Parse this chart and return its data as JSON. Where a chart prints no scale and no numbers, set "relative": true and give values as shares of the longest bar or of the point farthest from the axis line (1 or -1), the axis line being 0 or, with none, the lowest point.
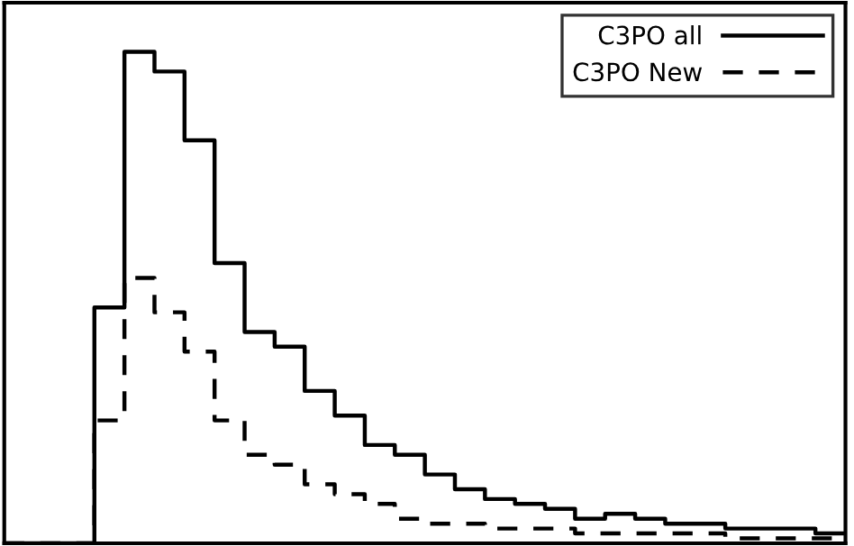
{
  "chart_data": {
    "type": "step",
    "relative": true,
    "legend": "top right",
    "categories": [
      null,
      null,
      null,
      null,
      null,
      null,
      null,
      null,
      null,
      null,
      null,
      null,
      null,
      null,
      null,
      null,
      null,
      null,
      null,
      null,
      null,
      null,
      null,
      null,
      null,
      null,
      null,
      null,
      null
    ],
    "series": [
      {
        "name": "C3PO all",
        "color": "#000000",
        "line_style": "solid",
        "values": [
          0,
          0,
          0,
          0.48,
          1.0,
          0.96,
          0.82,
          0.57,
          0.43,
          0.4,
          0.31,
          0.26,
          0.2,
          0.18,
          0.14,
          0.11,
          0.09,
          0.08,
          0.07,
          0.05,
          0.06,
          0.05,
          0.04,
          0.04,
          0.03,
          0.03,
          0.03,
          0.02,
          0.02
        ]
      },
      {
        "name": "C3PO New",
        "color": "#000000",
        "line_style": "dashed",
        "values": [
          0,
          0,
          0,
          0.25,
          0.54,
          0.47,
          0.39,
          0.25,
          0.18,
          0.16,
          0.12,
          0.1,
          0.08,
          0.05,
          0.04,
          0.04,
          0.03,
          0.03,
          0.03,
          0.02,
          0.02,
          0.02,
          0.02,
          0.02,
          0.01,
          0.01,
          0.01,
          0.01,
          0.01
        ]
      }
    ]
  }
}
